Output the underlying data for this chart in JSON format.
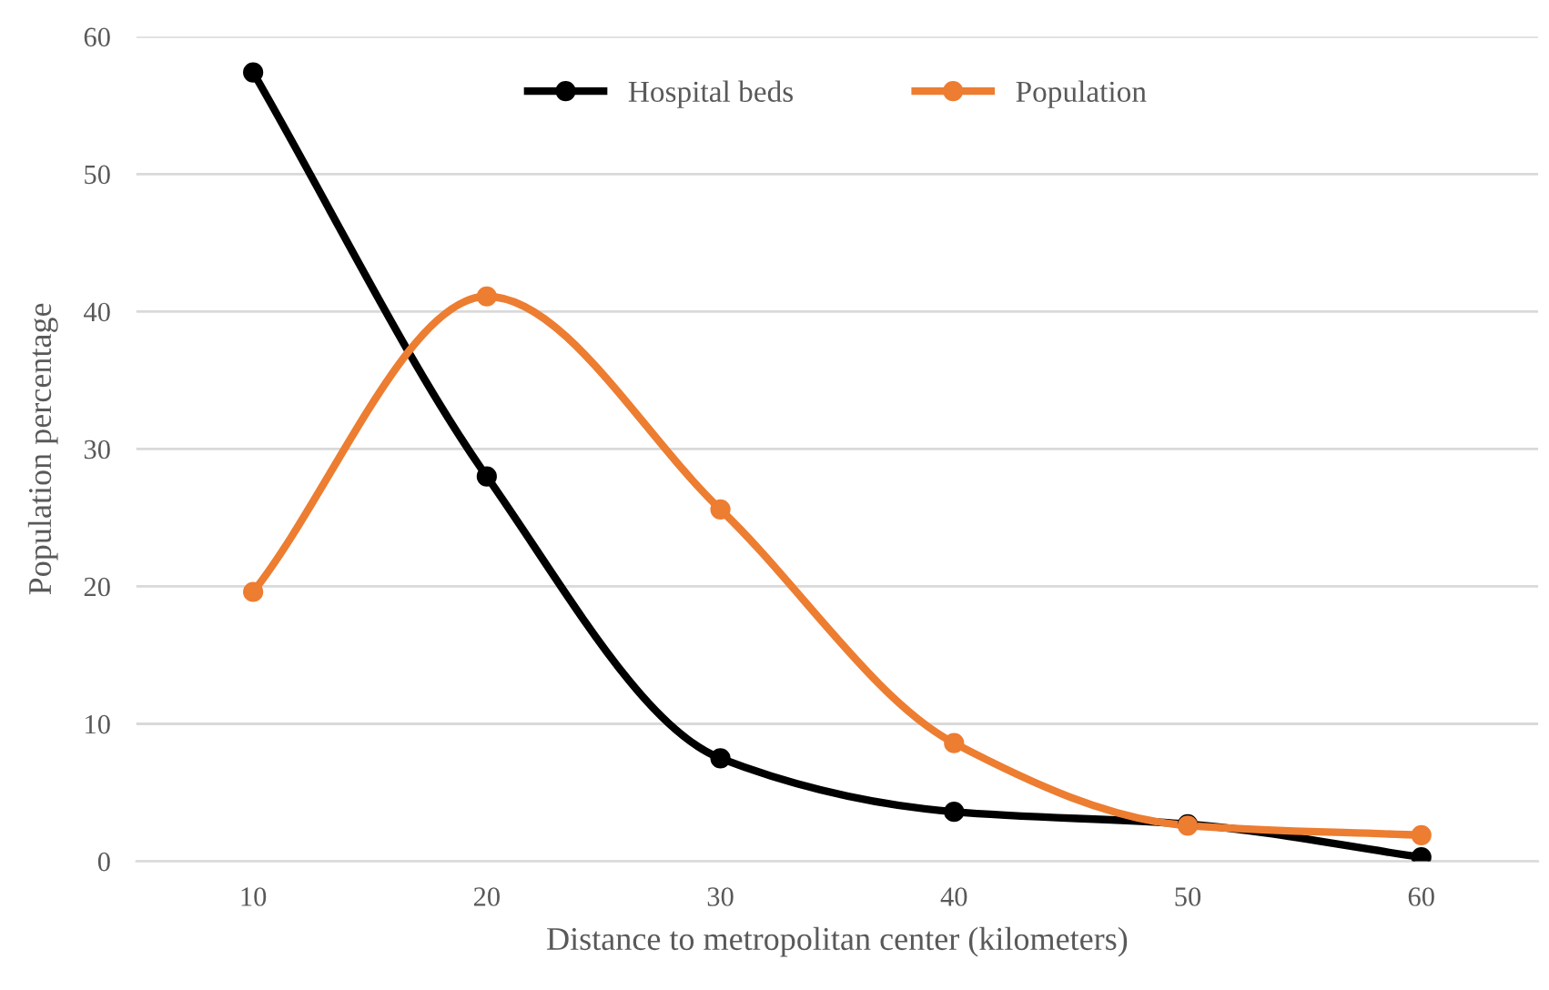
{
  "chart_data": {
    "type": "line",
    "xlabel": "Distance to metropolitan center (kilometers)",
    "ylabel": "Population percentage",
    "categories": [
      "10",
      "20",
      "30",
      "40",
      "50",
      "60"
    ],
    "series": [
      {
        "name": "Hospital beds",
        "color": "#000000",
        "values": [
          57.4,
          28.0,
          7.5,
          3.6,
          2.7,
          0.3
        ]
      },
      {
        "name": "Population",
        "color": "#ed7d31",
        "values": [
          19.6,
          41.1,
          25.6,
          8.6,
          2.6,
          1.9
        ]
      }
    ],
    "ylim": [
      0,
      60
    ],
    "yticks": [
      0,
      10,
      20,
      30,
      40,
      50,
      60
    ],
    "grid": "y",
    "legend": "top",
    "marker": "circle",
    "line_style": "solid"
  }
}
